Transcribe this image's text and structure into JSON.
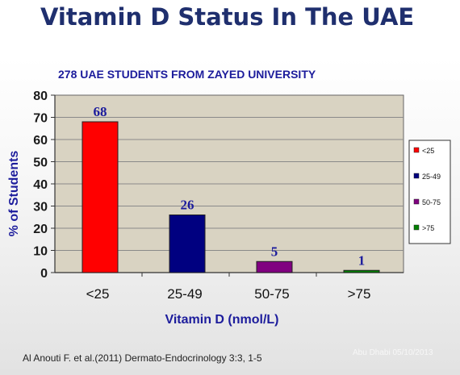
{
  "slide": {
    "title": "Vitamin D Status In The UAE",
    "citation": "Al Anouti F. et al.(2011) Dermato-Endocrinology 3:3, 1-5",
    "watermark": "Abu Dhabi  05/10/2013"
  },
  "colors": {
    "title": "#1f2f6e",
    "plot_background": "#d9d3c2",
    "axis_label": "#1c1c9c"
  },
  "chart_data": {
    "type": "bar",
    "title": "278 UAE STUDENTS FROM ZAYED UNIVERSITY",
    "xlabel": "Vitamin D (nmol/L)",
    "ylabel": "%  of Students",
    "ylim": [
      0,
      80
    ],
    "yticks": [
      0,
      10,
      20,
      30,
      40,
      50,
      60,
      70,
      80
    ],
    "grid": true,
    "legend_position": "right",
    "categories": [
      "<25",
      "25-49",
      "50-75",
      ">75"
    ],
    "values": [
      68,
      26,
      5,
      1
    ],
    "bar_colors": [
      "#ff0000",
      "#000080",
      "#800080",
      "#008000"
    ]
  }
}
